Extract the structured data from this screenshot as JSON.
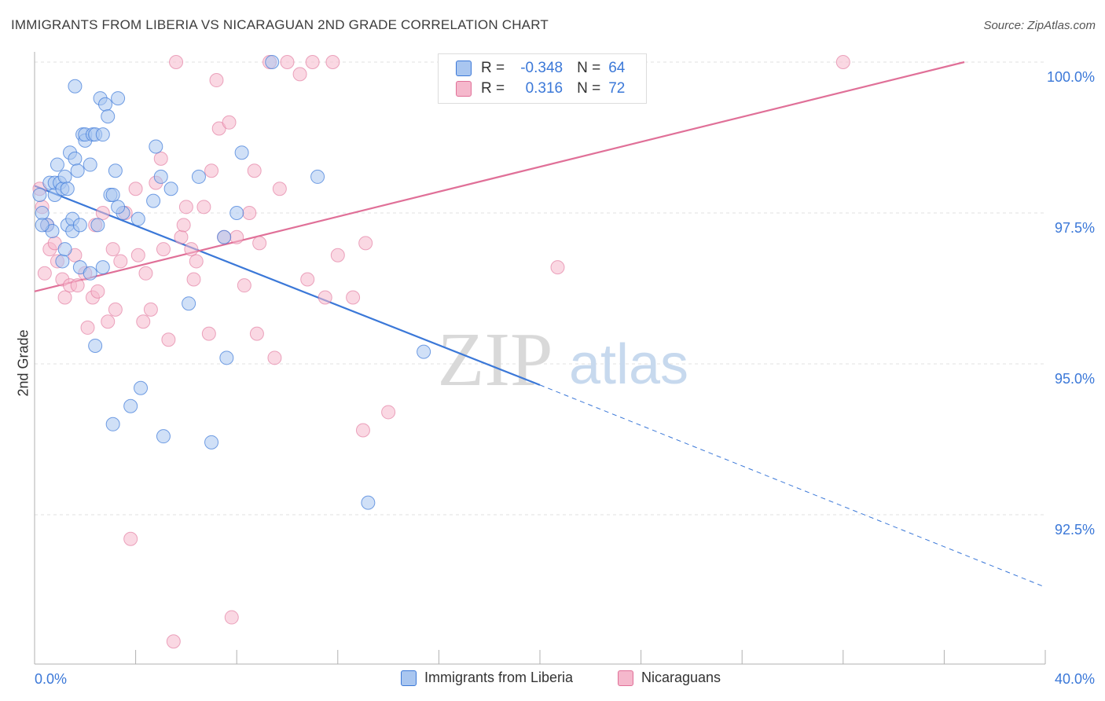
{
  "header": {
    "title": "IMMIGRANTS FROM LIBERIA VS NICARAGUAN 2ND GRADE CORRELATION CHART",
    "source": "Source: ZipAtlas.com"
  },
  "legend": {
    "rows": [
      {
        "r_label": "R =",
        "r_value": "-0.348",
        "n_label": "N =",
        "n_value": "64"
      },
      {
        "r_label": "R =",
        "r_value": "0.316",
        "n_label": "N =",
        "n_value": "72"
      }
    ]
  },
  "watermark": {
    "zip": "ZIP",
    "atlas": "atlas"
  },
  "chart_data": {
    "type": "scatter",
    "title": "IMMIGRANTS FROM LIBERIA VS NICARAGUAN 2ND GRADE CORRELATION CHART",
    "xlabel": "",
    "ylabel": "2nd Grade",
    "xlim": [
      0,
      40
    ],
    "ylim": [
      90.7,
      100.2
    ],
    "x_tick_labels": [
      "0.0%",
      "40.0%"
    ],
    "y_ticks": [
      92.5,
      95.0,
      97.5,
      100.0
    ],
    "y_tick_labels": [
      "92.5%",
      "95.0%",
      "97.5%",
      "100.0%"
    ],
    "grid": true,
    "legend_position": "top-center",
    "colors": {
      "liberia": "#3b78d8",
      "nicaraguans": "#e07098",
      "liberia_fill": "#a9c6f0",
      "nicaraguans_fill": "#f5b8cc",
      "axis_text": "#3b78d8"
    },
    "series": [
      {
        "name": "Immigrants from Liberia",
        "r": -0.348,
        "n": 64,
        "trend": {
          "x": [
            0.0,
            20.0
          ],
          "y": [
            97.95,
            94.65
          ],
          "dashed_to": [
            40.0,
            91.3
          ]
        },
        "points": [
          [
            0.2,
            97.8
          ],
          [
            0.3,
            97.5
          ],
          [
            0.5,
            97.3
          ],
          [
            0.6,
            98.0
          ],
          [
            0.7,
            97.2
          ],
          [
            0.8,
            97.8
          ],
          [
            0.8,
            98.0
          ],
          [
            0.9,
            98.3
          ],
          [
            1.0,
            98.0
          ],
          [
            1.1,
            97.9
          ],
          [
            1.1,
            96.7
          ],
          [
            1.2,
            98.1
          ],
          [
            1.3,
            97.9
          ],
          [
            1.2,
            96.9
          ],
          [
            1.3,
            97.3
          ],
          [
            1.4,
            98.5
          ],
          [
            1.5,
            97.2
          ],
          [
            1.5,
            97.4
          ],
          [
            1.6,
            98.4
          ],
          [
            1.7,
            98.2
          ],
          [
            1.6,
            99.6
          ],
          [
            1.8,
            97.3
          ],
          [
            1.8,
            96.6
          ],
          [
            1.9,
            98.8
          ],
          [
            2.0,
            98.7
          ],
          [
            2.0,
            98.8
          ],
          [
            2.2,
            98.3
          ],
          [
            2.2,
            96.5
          ],
          [
            2.3,
            98.8
          ],
          [
            2.4,
            98.8
          ],
          [
            2.5,
            97.3
          ],
          [
            2.4,
            95.3
          ],
          [
            2.6,
            99.4
          ],
          [
            2.7,
            98.8
          ],
          [
            2.7,
            96.6
          ],
          [
            2.8,
            99.3
          ],
          [
            2.9,
            99.1
          ],
          [
            3.0,
            97.8
          ],
          [
            3.1,
            97.8
          ],
          [
            3.2,
            98.2
          ],
          [
            3.3,
            99.4
          ],
          [
            3.5,
            97.5
          ],
          [
            3.3,
            97.6
          ],
          [
            3.1,
            94.0
          ],
          [
            3.8,
            94.3
          ],
          [
            4.1,
            97.4
          ],
          [
            4.2,
            94.6
          ],
          [
            4.7,
            97.7
          ],
          [
            4.8,
            98.6
          ],
          [
            5.0,
            98.1
          ],
          [
            5.1,
            93.8
          ],
          [
            5.4,
            97.9
          ],
          [
            6.1,
            96.0
          ],
          [
            6.5,
            98.1
          ],
          [
            7.0,
            93.7
          ],
          [
            7.5,
            97.1
          ],
          [
            7.6,
            95.1
          ],
          [
            8.0,
            97.5
          ],
          [
            8.2,
            98.5
          ],
          [
            9.4,
            100.0
          ],
          [
            11.2,
            98.1
          ],
          [
            13.2,
            92.7
          ],
          [
            15.4,
            95.2
          ],
          [
            0.3,
            97.3
          ]
        ]
      },
      {
        "name": "Nicaraguans",
        "r": 0.316,
        "n": 72,
        "trend": {
          "x": [
            0.0,
            36.8
          ],
          "y": [
            96.2,
            100.0
          ]
        },
        "points": [
          [
            0.2,
            97.9
          ],
          [
            0.3,
            97.6
          ],
          [
            0.5,
            97.3
          ],
          [
            0.4,
            96.5
          ],
          [
            0.6,
            96.9
          ],
          [
            0.8,
            97.0
          ],
          [
            0.9,
            96.7
          ],
          [
            1.1,
            96.4
          ],
          [
            1.2,
            96.1
          ],
          [
            1.4,
            96.3
          ],
          [
            1.6,
            96.8
          ],
          [
            1.7,
            96.3
          ],
          [
            2.0,
            96.5
          ],
          [
            2.1,
            95.6
          ],
          [
            2.3,
            96.1
          ],
          [
            2.4,
            97.3
          ],
          [
            2.5,
            96.2
          ],
          [
            2.7,
            97.5
          ],
          [
            2.9,
            95.7
          ],
          [
            3.1,
            96.9
          ],
          [
            3.2,
            95.9
          ],
          [
            3.4,
            96.7
          ],
          [
            3.6,
            97.5
          ],
          [
            3.8,
            92.1
          ],
          [
            4.0,
            97.9
          ],
          [
            4.1,
            96.8
          ],
          [
            4.3,
            95.7
          ],
          [
            4.4,
            96.5
          ],
          [
            4.6,
            95.9
          ],
          [
            4.8,
            98.0
          ],
          [
            5.0,
            98.4
          ],
          [
            5.1,
            96.9
          ],
          [
            5.3,
            95.4
          ],
          [
            5.5,
            90.4
          ],
          [
            5.6,
            100.0
          ],
          [
            5.8,
            97.1
          ],
          [
            5.9,
            97.3
          ],
          [
            6.0,
            97.6
          ],
          [
            6.2,
            96.9
          ],
          [
            6.3,
            96.4
          ],
          [
            6.4,
            96.7
          ],
          [
            6.7,
            97.6
          ],
          [
            6.9,
            95.5
          ],
          [
            7.0,
            98.2
          ],
          [
            7.2,
            99.7
          ],
          [
            7.3,
            98.9
          ],
          [
            7.5,
            97.1
          ],
          [
            7.7,
            99.0
          ],
          [
            7.8,
            90.8
          ],
          [
            8.0,
            97.1
          ],
          [
            8.3,
            96.3
          ],
          [
            8.5,
            97.5
          ],
          [
            8.7,
            98.2
          ],
          [
            8.8,
            95.5
          ],
          [
            8.9,
            97.0
          ],
          [
            9.3,
            100.0
          ],
          [
            9.5,
            95.1
          ],
          [
            9.7,
            97.9
          ],
          [
            10.0,
            100.0
          ],
          [
            10.5,
            99.8
          ],
          [
            10.8,
            96.4
          ],
          [
            11.0,
            100.0
          ],
          [
            11.5,
            96.1
          ],
          [
            11.8,
            100.0
          ],
          [
            12.0,
            96.8
          ],
          [
            12.6,
            96.1
          ],
          [
            13.0,
            93.9
          ],
          [
            13.1,
            97.0
          ],
          [
            14.0,
            94.2
          ],
          [
            20.7,
            96.6
          ],
          [
            21.6,
            100.0
          ],
          [
            32.0,
            100.0
          ]
        ]
      }
    ]
  },
  "bottom_legend": [
    {
      "label": "Immigrants from Liberia"
    },
    {
      "label": "Nicaraguans"
    }
  ]
}
